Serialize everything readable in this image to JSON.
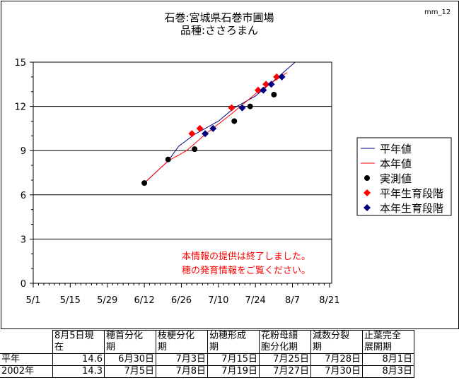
{
  "corner_label": "mm_12",
  "chart_data": {
    "type": "line",
    "title": "石巻:宮城県石巻市圃場",
    "subtitle": "品種:ささろまん",
    "xlabel": "",
    "ylabel": "",
    "x_ticks": [
      "5/1",
      "5/15",
      "5/29",
      "6/12",
      "6/26",
      "7/10",
      "7/24",
      "8/7",
      "8/21"
    ],
    "x_range": [
      "5/1",
      "8/23"
    ],
    "y_ticks": [
      0,
      3,
      6,
      9,
      12,
      15
    ],
    "ylim": [
      0,
      15
    ],
    "grid": true,
    "legend_position": "right",
    "series": [
      {
        "name": "平年値",
        "kind": "line",
        "color": "#000080",
        "points": [
          [
            "6/12",
            6.8
          ],
          [
            "6/21",
            8.3
          ],
          [
            "6/25",
            9.3
          ],
          [
            "7/1",
            10.1
          ],
          [
            "7/10",
            11.0
          ],
          [
            "7/16",
            11.9
          ],
          [
            "7/24",
            12.7
          ],
          [
            "8/1",
            13.9
          ],
          [
            "8/8",
            15.0
          ]
        ]
      },
      {
        "name": "本年値",
        "kind": "line",
        "color": "#ff0000",
        "points": [
          [
            "6/12",
            6.8
          ],
          [
            "6/21",
            8.3
          ],
          [
            "6/28",
            9.0
          ],
          [
            "7/5",
            10.1
          ],
          [
            "7/15",
            11.5
          ],
          [
            "7/25",
            13.0
          ],
          [
            "8/5",
            14.3
          ]
        ]
      },
      {
        "name": "実測値",
        "kind": "dot",
        "color": "#000000",
        "points": [
          [
            "6/12",
            6.8
          ],
          [
            "6/21",
            8.4
          ],
          [
            "7/1",
            9.1
          ],
          [
            "7/16",
            11.0
          ],
          [
            "7/22",
            12.0
          ],
          [
            "7/31",
            12.8
          ]
        ]
      },
      {
        "name": "平年生育段階",
        "kind": "diamond",
        "color": "#ff0000",
        "points": [
          [
            "6/30",
            10.15
          ],
          [
            "7/3",
            10.5
          ],
          [
            "7/15",
            11.9
          ],
          [
            "7/25",
            13.1
          ],
          [
            "7/28",
            13.5
          ],
          [
            "8/1",
            14.0
          ]
        ]
      },
      {
        "name": "本年生育段階",
        "kind": "diamond",
        "color": "#000080",
        "points": [
          [
            "7/5",
            10.15
          ],
          [
            "7/8",
            10.5
          ],
          [
            "7/19",
            11.9
          ],
          [
            "7/27",
            13.1
          ],
          [
            "7/30",
            13.5
          ],
          [
            "8/3",
            14.0
          ]
        ]
      }
    ],
    "annotation": [
      "本情報の提供は終了しました。",
      "穂の発育情報をご覧ください。"
    ]
  },
  "table": {
    "headers": [
      [
        "",
        ""
      ],
      [
        "8月5日現",
        "在"
      ],
      [
        "穂首分化",
        "期"
      ],
      [
        "枝梗分化",
        "期"
      ],
      [
        "幼穂形成",
        "期"
      ],
      [
        "花粉母細",
        "胞分化期"
      ],
      [
        "減数分裂",
        "期"
      ],
      [
        "止葉完全",
        "展開期"
      ]
    ],
    "rows": [
      [
        "平年",
        "14.6",
        "6月30日",
        "7月3日",
        "7月15日",
        "7月25日",
        "7月28日",
        "8月1日"
      ],
      [
        "2002年",
        "14.3",
        "7月5日",
        "7月8日",
        "7月19日",
        "7月27日",
        "7月30日",
        "8月3日"
      ]
    ]
  }
}
